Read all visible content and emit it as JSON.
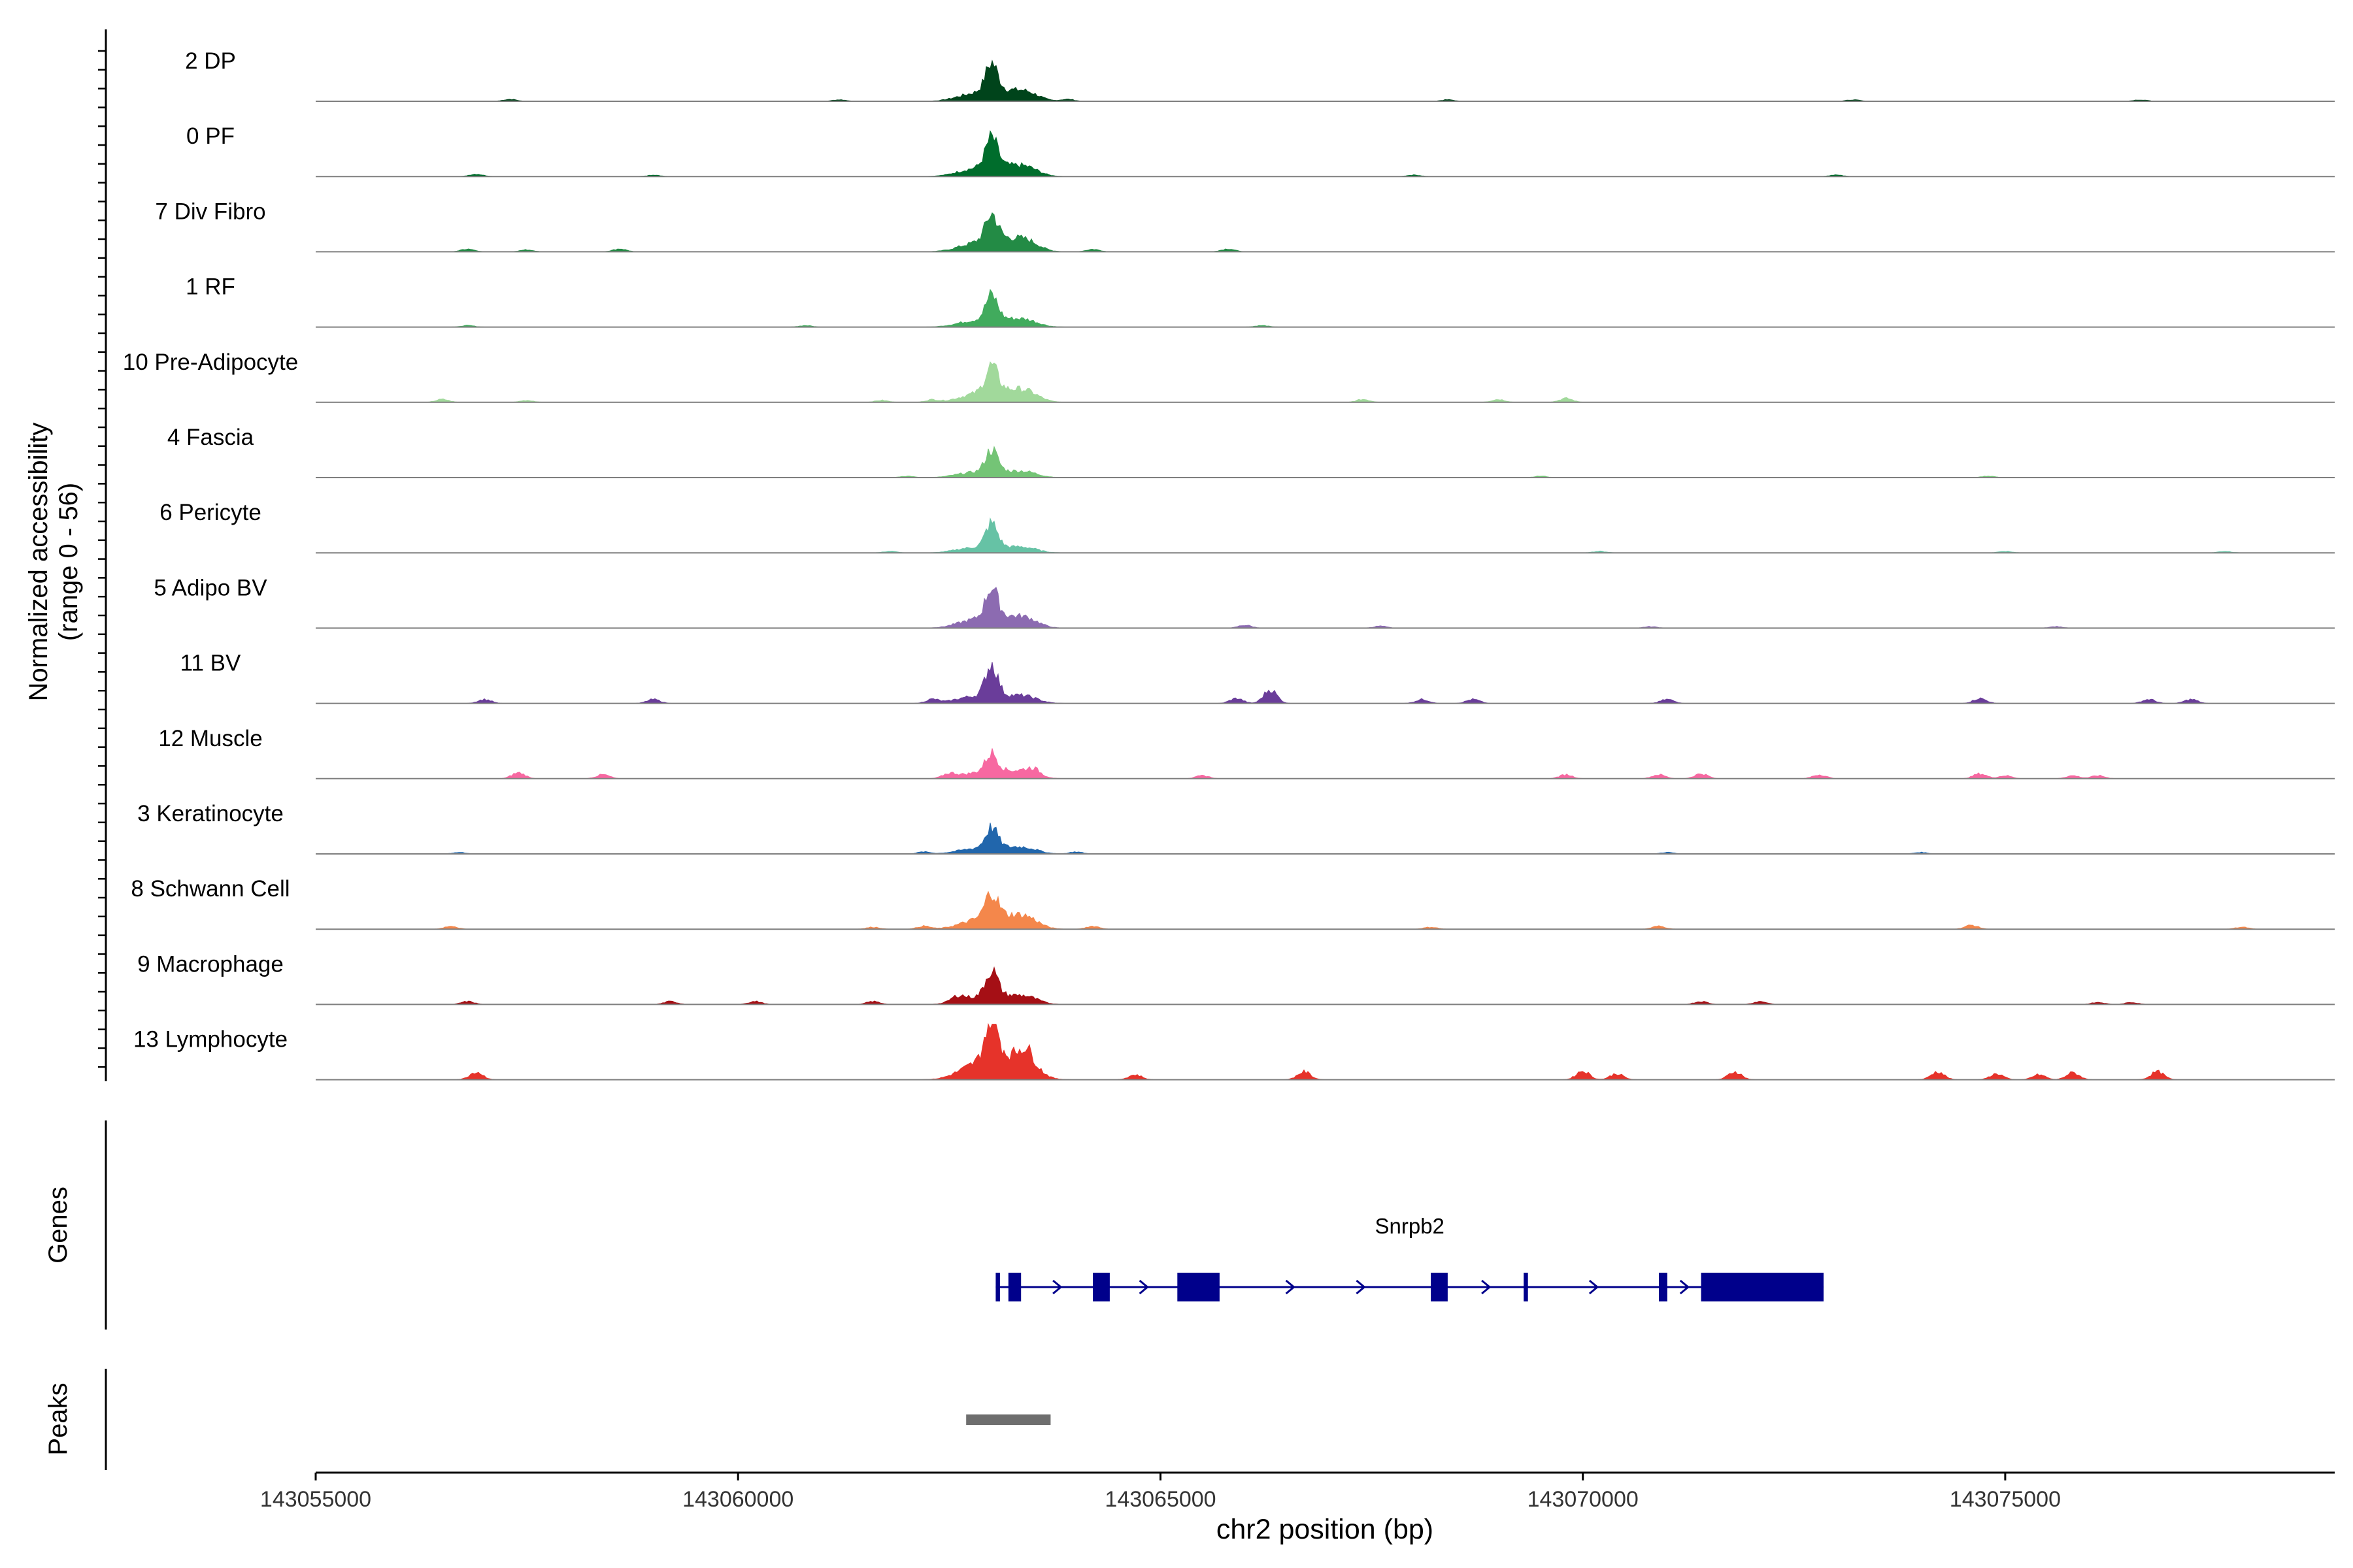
{
  "chart_data": {
    "type": "area",
    "title": "",
    "ylabel_line1": "Normalized accessibility",
    "ylabel_line2": "(range 0 - 56)",
    "y_range": [
      0,
      56
    ],
    "xlabel": "chr2 position (bp)",
    "xlim": [
      143055000,
      143078900
    ],
    "x_ticks": [
      143055000,
      143060000,
      143065000,
      143070000,
      143075000
    ],
    "x_tick_labels": [
      "143055000",
      "143060000",
      "143065000",
      "143070000",
      "143075000"
    ],
    "main_peak_center": 143063000,
    "tracks": [
      {
        "name": "2 DP",
        "color": "#00441b",
        "peak": 28,
        "shoulder": 0.4,
        "noise": [
          [
            143057300,
            2
          ],
          [
            143061200,
            1.5
          ],
          [
            143063900,
            2
          ],
          [
            143068400,
            1.5
          ],
          [
            143073200,
            1.5
          ],
          [
            143076600,
            1.5
          ]
        ]
      },
      {
        "name": "0 PF",
        "color": "#006d2c",
        "peak": 28,
        "shoulder": 0.4,
        "noise": [
          [
            143056900,
            2.5
          ],
          [
            143059000,
            1.5
          ],
          [
            143068000,
            1.5
          ],
          [
            143073000,
            1.5
          ]
        ]
      },
      {
        "name": "7 Div Fibro",
        "color": "#238b45",
        "peak": 25,
        "shoulder": 0.55,
        "noise": [
          [
            143056800,
            3
          ],
          [
            143057500,
            2
          ],
          [
            143058600,
            3
          ],
          [
            143064200,
            2.5
          ],
          [
            143065800,
            3
          ]
        ]
      },
      {
        "name": "1 RF",
        "color": "#41ab5d",
        "peak": 24,
        "shoulder": 0.35,
        "noise": [
          [
            143056800,
            1.5
          ],
          [
            143060800,
            1.5
          ],
          [
            143066200,
            1.5
          ]
        ]
      },
      {
        "name": "10 Pre-Adipocyte",
        "color": "#a1d99b",
        "peak": 24,
        "shoulder": 0.55,
        "noise": [
          [
            143056500,
            3
          ],
          [
            143057500,
            2
          ],
          [
            143061700,
            2
          ],
          [
            143062300,
            2.5
          ],
          [
            143067400,
            3
          ],
          [
            143069000,
            3
          ],
          [
            143069800,
            4
          ]
        ]
      },
      {
        "name": "4 Fascia",
        "color": "#74c476",
        "peak": 22,
        "shoulder": 0.3,
        "noise": [
          [
            143062000,
            1.5
          ],
          [
            143069500,
            1.5
          ],
          [
            143074800,
            1.5
          ]
        ]
      },
      {
        "name": "6 Pericyte",
        "color": "#66c2a5",
        "peak": 24,
        "shoulder": 0.25,
        "noise": [
          [
            143061800,
            1.5
          ],
          [
            143070200,
            1.5
          ],
          [
            143075000,
            1.5
          ],
          [
            143077600,
            1.5
          ]
        ]
      },
      {
        "name": "5 Adipo BV",
        "color": "#8c6bb1",
        "peak": 30,
        "shoulder": 0.4,
        "noise": [
          [
            143066000,
            3
          ],
          [
            143067600,
            2
          ],
          [
            143070800,
            1.5
          ],
          [
            143075600,
            1.5
          ]
        ]
      },
      {
        "name": "11 BV",
        "color": "#6a3d9a",
        "peak": 32,
        "shoulder": 0.25,
        "noise": [
          [
            143057000,
            4
          ],
          [
            143059000,
            4
          ],
          [
            143062300,
            4
          ],
          [
            143065900,
            5
          ],
          [
            143066300,
            14
          ],
          [
            143068100,
            4
          ],
          [
            143068700,
            4
          ],
          [
            143071000,
            4
          ],
          [
            143074700,
            5
          ],
          [
            143076700,
            4
          ],
          [
            143077200,
            4
          ]
        ]
      },
      {
        "name": "12 Muscle",
        "color": "#f768a1",
        "peak": 18,
        "shoulder": 0.45,
        "noise": [
          [
            143057400,
            6
          ],
          [
            143058400,
            4
          ],
          [
            143062500,
            4
          ],
          [
            143063500,
            5
          ],
          [
            143065500,
            3
          ],
          [
            143069800,
            4
          ],
          [
            143070900,
            4
          ],
          [
            143071400,
            5
          ],
          [
            143072800,
            4
          ],
          [
            143074700,
            5
          ],
          [
            143075000,
            3
          ],
          [
            143075800,
            3
          ],
          [
            143076100,
            3
          ]
        ]
      },
      {
        "name": "3 Keratinocyte",
        "color": "#2166ac",
        "peak": 20,
        "shoulder": 0.35,
        "noise": [
          [
            143056700,
            1.5
          ],
          [
            143062200,
            2
          ],
          [
            143064000,
            2
          ],
          [
            143071000,
            1.5
          ],
          [
            143074000,
            1.5
          ]
        ]
      },
      {
        "name": "8 Schwann Cell",
        "color": "#f4874b",
        "peak": 24,
        "shoulder": 0.6,
        "noise": [
          [
            143056600,
            3
          ],
          [
            143061600,
            2
          ],
          [
            143062200,
            3
          ],
          [
            143064200,
            3
          ],
          [
            143068200,
            2
          ],
          [
            143070900,
            3
          ],
          [
            143074600,
            4
          ],
          [
            143077800,
            2
          ]
        ]
      },
      {
        "name": "9 Macrophage",
        "color": "#a50f15",
        "peak": 26,
        "shoulder": 0.35,
        "noise": [
          [
            143056800,
            3
          ],
          [
            143059200,
            3
          ],
          [
            143060200,
            3
          ],
          [
            143061600,
            3
          ],
          [
            143062600,
            5
          ],
          [
            143071400,
            3
          ],
          [
            143072100,
            3
          ],
          [
            143076100,
            2
          ],
          [
            143076500,
            2
          ]
        ]
      },
      {
        "name": "13 Lymphocyte",
        "color": "#e6332a",
        "peak": 44,
        "shoulder": 0.55,
        "noise": [
          [
            143056900,
            8
          ],
          [
            143063400,
            10
          ],
          [
            143064700,
            5
          ],
          [
            143066700,
            8
          ],
          [
            143070000,
            9
          ],
          [
            143070400,
            6
          ],
          [
            143071800,
            8
          ],
          [
            143074200,
            8
          ],
          [
            143074900,
            6
          ],
          [
            143075400,
            5
          ],
          [
            143075800,
            7
          ],
          [
            143076800,
            8
          ]
        ]
      }
    ],
    "genes_label": "Genes",
    "gene": {
      "name": "Snrpb2",
      "start": 143063050,
      "end": 143072850,
      "strand": "+",
      "exons": [
        [
          143063050,
          143063100
        ],
        [
          143063200,
          143063350
        ],
        [
          143064200,
          143064400
        ],
        [
          143065200,
          143065700
        ],
        [
          143068200,
          143068400
        ],
        [
          143069300,
          143069350
        ],
        [
          143070900,
          143071000
        ],
        [
          143071400,
          143072850
        ]
      ],
      "color": "#00008b"
    },
    "peaks_label": "Peaks",
    "peaks": [
      [
        143062700,
        143063700
      ]
    ],
    "peak_color": "#6e6e6e"
  }
}
